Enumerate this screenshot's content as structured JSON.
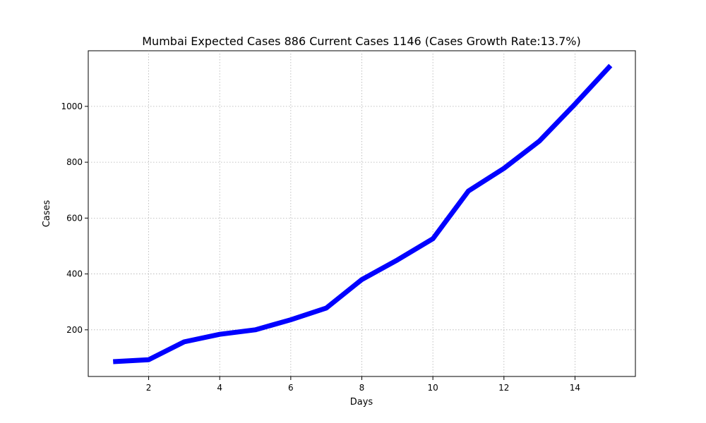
{
  "chart_data": {
    "type": "line",
    "title": "Mumbai Expected Cases 886 Current Cases 1146 (Cases Growth Rate:13.7%)",
    "xlabel": "Days",
    "ylabel": "Cases",
    "x": [
      1,
      2,
      3,
      4,
      5,
      6,
      7,
      8,
      9,
      10,
      11,
      12,
      13,
      14,
      15
    ],
    "series": [
      {
        "values": [
          86,
          93,
          157,
          184,
          200,
          236,
          278,
          380,
          450,
          526,
          697,
          778,
          876,
          1008,
          1146
        ],
        "color": "#0000ff"
      }
    ],
    "xlim": [
      0.3,
      15.7
    ],
    "ylim": [
      33,
      1199
    ],
    "xticks": [
      2,
      4,
      6,
      8,
      10,
      12,
      14
    ],
    "yticks": [
      200,
      400,
      600,
      800,
      1000
    ],
    "grid": true
  }
}
